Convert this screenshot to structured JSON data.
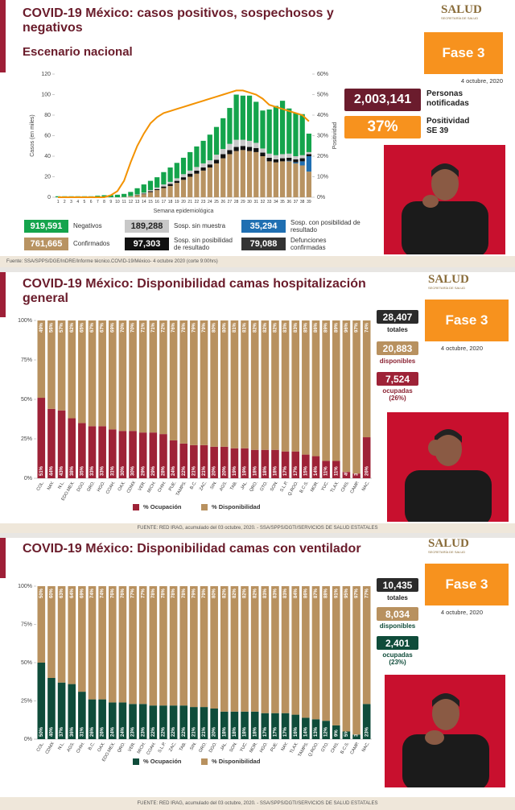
{
  "chart_data": [
    {
      "type": "bar",
      "stacked": true,
      "title": "COVID-19 México: casos positivos, sospechosos y negativos",
      "ylabel": "Casos (en miles)",
      "xlabel": "Semana epidemiológica",
      "categories": [
        "1",
        "2",
        "3",
        "4",
        "5",
        "6",
        "7",
        "8",
        "9",
        "10",
        "11",
        "12",
        "13",
        "14",
        "15",
        "16",
        "17",
        "18",
        "19",
        "20",
        "21",
        "22",
        "23",
        "24",
        "25",
        "26",
        "27",
        "28",
        "29",
        "30",
        "31",
        "32",
        "33",
        "34",
        "35",
        "36",
        "37",
        "38",
        "39"
      ],
      "ylim": [
        0,
        120
      ],
      "yticks": [
        0,
        20,
        40,
        60,
        80,
        100,
        120
      ],
      "y2lim": [
        0,
        60
      ],
      "y2ticks": [
        {
          "value": 0,
          "label": "0%"
        },
        {
          "value": 10,
          "label": "10%"
        },
        {
          "value": 20,
          "label": "20%"
        },
        {
          "value": 30,
          "label": "30%"
        },
        {
          "value": 40,
          "label": "40%"
        },
        {
          "value": 50,
          "label": "50%"
        },
        {
          "value": 60,
          "label": "60%"
        }
      ],
      "series": [
        {
          "name": "Confirmados",
          "color": "#b89362",
          "total_label": "761,665",
          "values": [
            0,
            0,
            0,
            0,
            0,
            0,
            0,
            0,
            0,
            0,
            0.3,
            1,
            2,
            3,
            5,
            7,
            9,
            11,
            14,
            17,
            20,
            23,
            26,
            29,
            33,
            38,
            42,
            45,
            46,
            45,
            44,
            40,
            35,
            34,
            35,
            35,
            33,
            31,
            25
          ]
        },
        {
          "name": "Sosp. con posibilidad de resultado",
          "color": "#1f6fb2",
          "total_label": "35,294",
          "values": [
            0,
            0,
            0,
            0,
            0,
            0,
            0,
            0,
            0,
            0,
            0,
            0,
            0,
            0,
            0,
            0,
            0,
            0,
            0,
            0,
            0,
            0,
            0,
            0,
            0,
            0,
            0,
            0,
            0,
            0,
            0,
            0,
            0,
            0,
            0,
            0.5,
            1,
            4,
            15
          ]
        },
        {
          "name": "Sosp. sin posibilidad de resultado",
          "color": "#111111",
          "total_label": "97,303",
          "values": [
            0,
            0,
            0,
            0,
            0,
            0,
            0,
            0,
            0,
            0,
            0,
            0,
            0.3,
            0.5,
            1,
            1,
            1.5,
            2,
            2,
            2.5,
            3,
            3,
            3,
            3,
            3.5,
            4,
            4,
            4,
            4,
            4,
            4,
            3.5,
            3.5,
            3,
            3,
            3,
            3,
            3,
            2
          ]
        },
        {
          "name": "Sosp. sin muestra",
          "color": "#c8c8c8",
          "total_label": "189,288",
          "values": [
            0,
            0,
            0,
            0,
            0,
            0,
            0,
            0,
            0,
            0,
            0,
            0.2,
            0.5,
            1,
            1,
            1.5,
            2,
            2,
            2.5,
            3,
            3,
            3.5,
            4,
            4,
            5,
            5,
            6,
            7,
            6,
            6,
            5,
            4,
            4,
            4,
            4,
            4,
            3,
            3,
            2
          ]
        },
        {
          "name": "Negativos",
          "color": "#14a44c",
          "total_label": "919,591",
          "values": [
            1,
            1,
            1,
            1,
            1,
            1,
            1.5,
            2,
            2,
            2.5,
            3,
            4,
            6,
            8,
            9,
            10,
            12,
            14,
            15,
            16,
            18,
            20,
            22,
            25,
            27,
            30,
            35,
            44,
            43,
            44,
            40,
            37,
            43,
            48,
            52,
            44,
            42,
            40,
            18
          ]
        },
        {
          "name": "Positividad",
          "type": "line",
          "axis": "y2",
          "color": "#f39200",
          "values": [
            0,
            0,
            0,
            0,
            0,
            0,
            0,
            0,
            1,
            3,
            8,
            17,
            25,
            31,
            36,
            39,
            41,
            42,
            43,
            44,
            45,
            46,
            47,
            48,
            49,
            50,
            51,
            52,
            52,
            51,
            50,
            48,
            45,
            44,
            43,
            42,
            41,
            40,
            37
          ]
        }
      ],
      "deaths": {
        "name": "Defunciones confirmadas",
        "color": "#333333",
        "total_label": "79,088"
      }
    },
    {
      "type": "bar",
      "stacked": true,
      "title": "COVID-19 México: Disponibilidad camas hospitalización general",
      "categories": [
        "COL.",
        "NAY.",
        "N.L.",
        "EDO.MEX.",
        "DGO.",
        "GRO.",
        "HGO.",
        "COAH.",
        "OAX.",
        "CDMX",
        "VER.",
        "MICH.",
        "CHIH.",
        "PUE.",
        "TAMPS.",
        "B.C.",
        "ZAC.",
        "SIN.",
        "AGS.",
        "TAB.",
        "JAL.",
        "QRO.",
        "GTO.",
        "SON.",
        "S.L.P.",
        "Q.ROO.",
        "B.C.S.",
        "MOR.",
        "YUC.",
        "TLAX.",
        "CHIS.",
        "CAMP.",
        "NAC."
      ],
      "ylim": [
        0,
        100
      ],
      "yticks": [
        {
          "value": 0,
          "label": "0%"
        },
        {
          "value": 25,
          "label": "25%"
        },
        {
          "value": 50,
          "label": "50%"
        },
        {
          "value": 75,
          "label": "75%"
        },
        {
          "value": 100,
          "label": "100%"
        }
      ],
      "series": [
        {
          "name": "% Ocupación",
          "color": "#9e2237",
          "values": [
            51,
            44,
            43,
            38,
            35,
            33,
            33,
            31,
            30,
            30,
            29,
            29,
            28,
            24,
            22,
            21,
            21,
            20,
            20,
            19,
            19,
            18,
            18,
            18,
            17,
            17,
            15,
            14,
            11,
            11,
            4,
            3,
            26
          ],
          "value_labels": [
            "51%",
            "44%",
            "43%",
            "38%",
            "35%",
            "33%",
            "33%",
            "31%",
            "30%",
            "30%",
            "29%",
            "29%",
            "28%",
            "24%",
            "22%",
            "21%",
            "21%",
            "20%",
            "20%",
            "19%",
            "19%",
            "18%",
            "18%",
            "18%",
            "17%",
            "17%",
            "15%",
            "14%",
            "11%",
            "11%",
            "4%",
            "3%",
            "26%"
          ]
        },
        {
          "name": "% Disponibilidad",
          "color": "#b8915f",
          "values": [
            49,
            56,
            57,
            62,
            65,
            67,
            67,
            69,
            70,
            70,
            71,
            71,
            72,
            76,
            78,
            79,
            79,
            80,
            80,
            81,
            81,
            82,
            82,
            82,
            83,
            83,
            85,
            86,
            89,
            89,
            96,
            97,
            74
          ],
          "value_labels": [
            "49%",
            "56%",
            "57%",
            "62%",
            "65%",
            "67%",
            "67%",
            "69%",
            "70%",
            "70%",
            "71%",
            "71%",
            "72%",
            "76%",
            "78%",
            "79%",
            "79%",
            "80%",
            "80%",
            "81%",
            "81%",
            "82%",
            "82%",
            "82%",
            "83%",
            "83%",
            "85%",
            "86%",
            "89%",
            "89%",
            "96%",
            "97%",
            "74%"
          ]
        }
      ]
    },
    {
      "type": "bar",
      "stacked": true,
      "title": "COVID-19 México: Disponibilidad camas con ventilador",
      "categories": [
        "COL.",
        "CDMX",
        "N.L.",
        "AGS.",
        "CHIH.",
        "B.C.",
        "OAX.",
        "EDO.MEX.",
        "QRO.",
        "VER.",
        "MICH.",
        "COAH.",
        "S.L.P.",
        "ZAC.",
        "TAB.",
        "SIN.",
        "GRO.",
        "DGO.",
        "JAL.",
        "SON.",
        "YUC.",
        "MOR.",
        "HGO.",
        "PUE.",
        "NAY.",
        "TLAX.",
        "TAMPS.",
        "Q.ROO.",
        "GTO.",
        "CHIS.",
        "B.C.S.",
        "CAMP.",
        "NAC."
      ],
      "ylim": [
        0,
        100
      ],
      "yticks": [
        {
          "value": 0,
          "label": "0%"
        },
        {
          "value": 25,
          "label": "25%"
        },
        {
          "value": 50,
          "label": "50%"
        },
        {
          "value": 75,
          "label": "75%"
        },
        {
          "value": 100,
          "label": "100%"
        }
      ],
      "series": [
        {
          "name": "% Ocupación",
          "color": "#0f4c3a",
          "values": [
            50,
            40,
            37,
            36,
            31,
            26,
            26,
            24,
            24,
            23,
            23,
            22,
            22,
            22,
            22,
            21,
            21,
            20,
            18,
            18,
            18,
            18,
            17,
            17,
            17,
            16,
            14,
            13,
            12,
            9,
            5,
            3,
            23
          ],
          "value_labels": [
            "50%",
            "40%",
            "37%",
            "36%",
            "31%",
            "26%",
            "26%",
            "24%",
            "24%",
            "23%",
            "23%",
            "22%",
            "22%",
            "22%",
            "22%",
            "21%",
            "21%",
            "20%",
            "18%",
            "18%",
            "18%",
            "18%",
            "17%",
            "17%",
            "17%",
            "16%",
            "14%",
            "13%",
            "12%",
            "9%",
            "5%",
            "3%",
            "23%"
          ]
        },
        {
          "name": "% Disponibilidad",
          "color": "#b8915f",
          "values": [
            50,
            60,
            63,
            64,
            69,
            74,
            74,
            76,
            76,
            77,
            77,
            78,
            78,
            78,
            78,
            79,
            79,
            80,
            82,
            82,
            82,
            82,
            83,
            83,
            83,
            84,
            86,
            87,
            88,
            91,
            95,
            97,
            77
          ],
          "value_labels": [
            "50%",
            "60%",
            "63%",
            "64%",
            "69%",
            "74%",
            "74%",
            "76%",
            "76%",
            "77%",
            "77%",
            "78%",
            "78%",
            "78%",
            "78%",
            "79%",
            "79%",
            "80%",
            "82%",
            "82%",
            "82%",
            "82%",
            "83%",
            "83%",
            "83%",
            "84%",
            "86%",
            "87%",
            "88%",
            "91%",
            "95%",
            "97%",
            "77%"
          ]
        }
      ]
    }
  ],
  "slides": [
    {
      "subtitle": "Escenario nacional",
      "logo": "SALUD",
      "logo_sub": "SECRETARÍA DE SALUD",
      "phase": "Fase 3",
      "date": "4 octubre, 2020",
      "stats": [
        {
          "value": "2,003,141",
          "label": "Personas notificadas"
        },
        {
          "value": "37%",
          "label": "Positividad SE 39"
        }
      ],
      "source": "Fuente: SSA/SPPS/DGE/InDRE/Informe técnico.COVID-19/México- 4 octubre 2020 (corte 9:00hrs)"
    },
    {
      "logo": "SALUD",
      "logo_sub": "SECRETARÍA DE SALUD",
      "phase": "Fase 3",
      "date": "4 octubre, 2020",
      "stats": [
        {
          "value": "28,407",
          "label": "totales"
        },
        {
          "value": "20,883",
          "label": "disponibles"
        },
        {
          "value": "7,524",
          "label": "ocupadas (26%)"
        }
      ],
      "source": "FUENTE: RED IRAG, acumulado del 03 octubre, 2020. - SSA/SPPS/DGTI/SERVICIOS DE SALUD ESTATALES"
    },
    {
      "logo": "SALUD",
      "logo_sub": "SECRETARÍA DE SALUD",
      "phase": "Fase 3",
      "date": "4 octubre, 2020",
      "stats": [
        {
          "value": "10,435",
          "label": "totales"
        },
        {
          "value": "8,034",
          "label": "disponibles"
        },
        {
          "value": "2,401",
          "label": "ocupadas (23%)"
        }
      ],
      "source": "FUENTE: RED IRAG, acumulado del 03 octubre, 2020. - SSA/SPPS/DGTI/SERVICIOS DE SALUD ESTATALES"
    }
  ]
}
